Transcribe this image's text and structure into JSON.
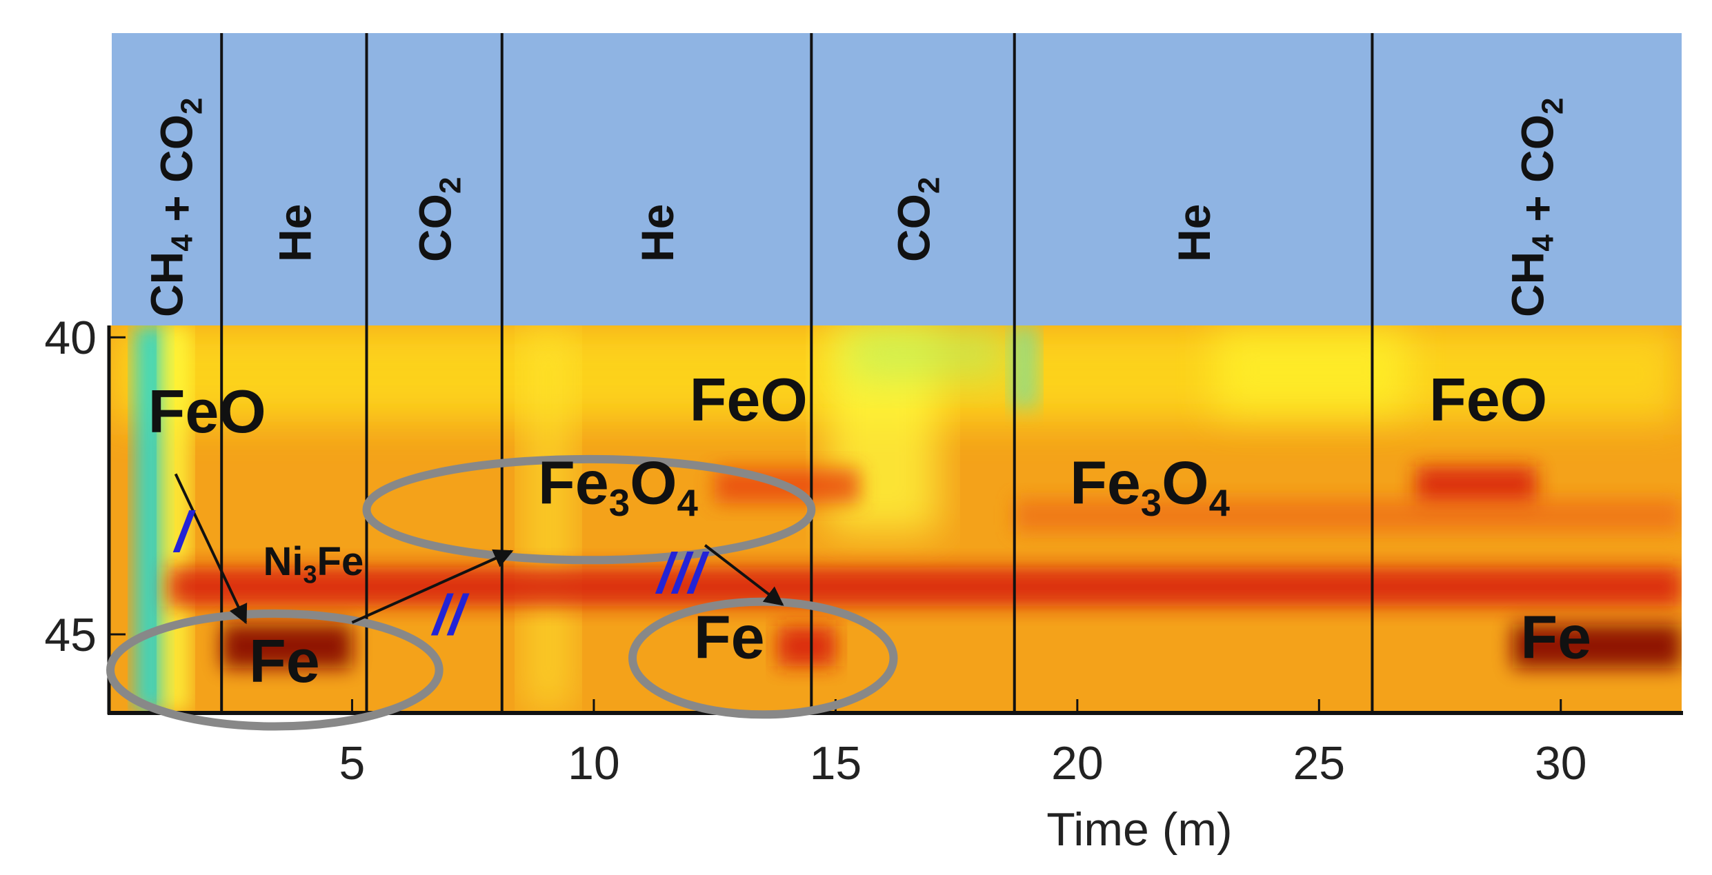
{
  "chart_data": {
    "type": "heatmap",
    "title": "",
    "xlabel": "Time (m)",
    "ylabel": "",
    "xlim": [
      0,
      32.5
    ],
    "ylim": [
      46.3,
      39.8
    ],
    "x_ticks": [
      5,
      10,
      15,
      20,
      25,
      30
    ],
    "y_ticks": [
      40,
      45
    ],
    "colorscale": [
      "#22d3d0",
      "#ffff1a",
      "#f5a300",
      "#ea3a10",
      "#8a0000"
    ],
    "gas_segments": [
      {
        "x0": 0,
        "x1": 2.3,
        "gas_main": "CH",
        "sub1": "4",
        "mid": " + CO",
        "sub2": "2"
      },
      {
        "x0": 2.3,
        "x1": 5.3,
        "gas_main": "He",
        "sub1": "",
        "mid": "",
        "sub2": ""
      },
      {
        "x0": 5.3,
        "x1": 8.1,
        "gas_main": "CO",
        "sub1": "2",
        "mid": "",
        "sub2": ""
      },
      {
        "x0": 8.1,
        "x1": 14.5,
        "gas_main": "He",
        "sub1": "",
        "mid": "",
        "sub2": ""
      },
      {
        "x0": 14.5,
        "x1": 18.7,
        "gas_main": "CO",
        "sub1": "2",
        "mid": "",
        "sub2": ""
      },
      {
        "x0": 18.7,
        "x1": 26.1,
        "gas_main": "He",
        "sub1": "",
        "mid": "",
        "sub2": ""
      },
      {
        "x0": 26.1,
        "x1": 32.5,
        "gas_main": "CH",
        "sub1": "4",
        "mid": " + CO",
        "sub2": "2"
      }
    ],
    "intensity_bands": [
      {
        "y": 44.2,
        "x0": 1.2,
        "x1": 32.5,
        "strength": 0.75,
        "label": "Ni3Fe"
      },
      {
        "y": 45.2,
        "x0": 2.3,
        "x1": 5.0,
        "strength": 1.0,
        "label": "Fe"
      },
      {
        "y": 45.2,
        "x0": 13.8,
        "x1": 15.0,
        "strength": 0.8,
        "label": "Fe"
      },
      {
        "y": 45.2,
        "x0": 29.0,
        "x1": 32.5,
        "strength": 1.0,
        "label": "Fe"
      },
      {
        "y": 42.5,
        "x0": 12.5,
        "x1": 15.5,
        "strength": 0.55,
        "label": "Fe3O4"
      },
      {
        "y": 42.5,
        "x0": 27.0,
        "x1": 29.5,
        "strength": 0.75,
        "label": "FeO"
      },
      {
        "y": 43.0,
        "x0": 18.7,
        "x1": 32.5,
        "strength": 0.45,
        "label": "Fe3O4"
      }
    ],
    "annotations": [
      {
        "text": "FeO",
        "x": 2.0,
        "y": 41.6,
        "size": "large"
      },
      {
        "text": "FeO",
        "x": 13.2,
        "y": 41.4,
        "size": "large"
      },
      {
        "text": "FeO",
        "x": 28.5,
        "y": 41.4,
        "size": "large"
      },
      {
        "text": "Fe",
        "x": 3.6,
        "y": 45.8,
        "size": "large"
      },
      {
        "text": "Fe",
        "x": 12.8,
        "y": 45.4,
        "size": "large"
      },
      {
        "text": "Fe",
        "x": 29.9,
        "y": 45.4,
        "size": "large"
      },
      {
        "text": "Ni",
        "sub": "3",
        "after": "Fe",
        "x": 4.2,
        "y": 44.0,
        "size": "medium"
      },
      {
        "text": "Fe",
        "sub": "3",
        "after": "O",
        "sub2": "4",
        "x": 10.5,
        "y": 42.8,
        "size": "large"
      },
      {
        "text": "Fe",
        "sub": "3",
        "after": "O",
        "sub2": "4",
        "x": 21.5,
        "y": 42.8,
        "size": "large"
      }
    ],
    "step_labels": [
      {
        "text": "/",
        "x": 1.5,
        "y": 43.6
      },
      {
        "text": "//",
        "x": 7.0,
        "y": 45.0
      },
      {
        "text": "///",
        "x": 11.8,
        "y": 44.3
      }
    ],
    "ellipses": [
      {
        "cx": 3.4,
        "cy": 45.6,
        "rx": 3.4,
        "ry": 0.95
      },
      {
        "cx": 9.9,
        "cy": 42.9,
        "rx": 4.6,
        "ry": 0.85
      },
      {
        "cx": 13.5,
        "cy": 45.4,
        "rx": 2.7,
        "ry": 0.95
      }
    ],
    "arrows": [
      {
        "x0": 1.35,
        "y0": 42.3,
        "x1": 2.8,
        "y1": 44.8
      },
      {
        "x0": 5.0,
        "y0": 44.8,
        "x1": 8.3,
        "y1": 43.6
      },
      {
        "x0": 12.3,
        "y0": 43.5,
        "x1": 13.9,
        "y1": 44.5
      }
    ]
  }
}
